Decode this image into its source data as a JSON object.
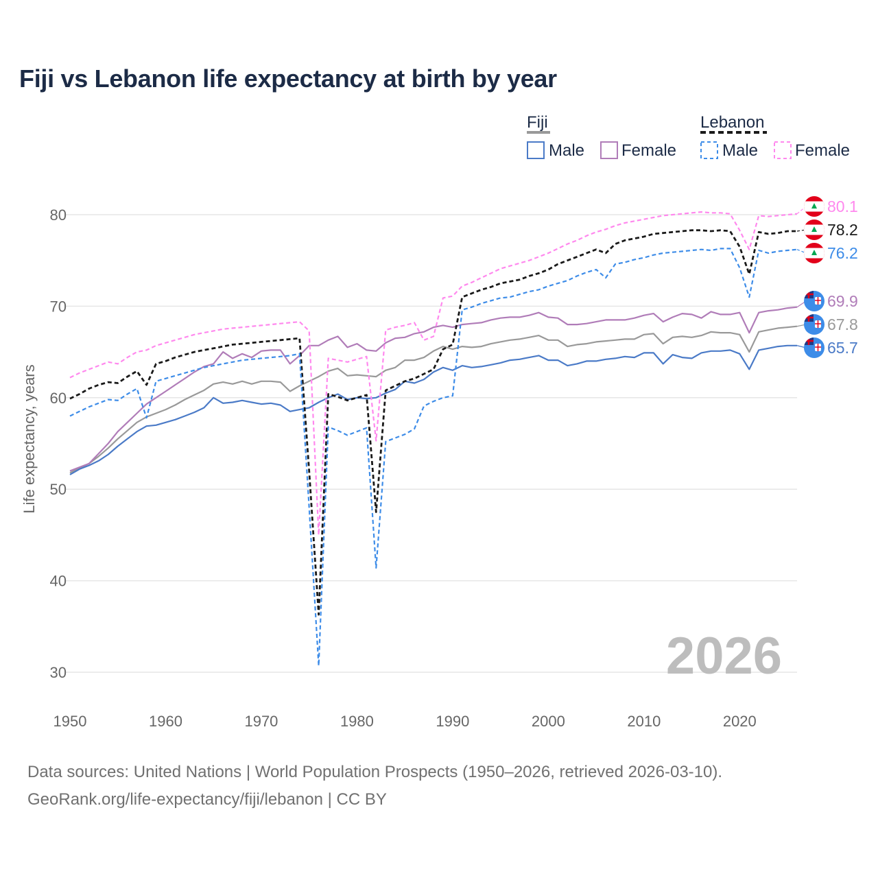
{
  "header": {
    "title": "Fiji vs Lebanon life expectancy at birth by year"
  },
  "footer": {
    "source_line": "Data sources: United Nations | World Population Prospects (1950–2026, retrieved 2026-03-10).",
    "credit_line": "GeoRank.org/life-expectancy/fiji/lebanon | CC BY"
  },
  "colors": {
    "fiji_total": "#999999",
    "fiji_male": "#4a7ac7",
    "fiji_female": "#b07cb8",
    "lebanon_total": "#1a1a1a",
    "lebanon_male": "#3d8ce8",
    "lebanon_female": "#ff88ee",
    "grid": "#e6e6e6",
    "title": "#1c2b46"
  },
  "chart_data": {
    "type": "line",
    "title": "Fiji vs Lebanon life expectancy at birth by year",
    "xlabel": "",
    "ylabel": "Life expectancy, years",
    "xlim": [
      1950,
      2026
    ],
    "ylim": [
      27,
      85
    ],
    "x_ticks": [
      1950,
      1960,
      1970,
      1980,
      1990,
      2000,
      2010,
      2020
    ],
    "y_ticks": [
      30,
      40,
      50,
      60,
      70,
      80
    ],
    "grid": true,
    "year_watermark": "2026",
    "legend": {
      "placement": "top-right",
      "groups": [
        {
          "name": "Fiji",
          "items": [
            "Male",
            "Female"
          ]
        },
        {
          "name": "Lebanon",
          "items": [
            "Male",
            "Female"
          ]
        }
      ]
    },
    "x": [
      1950,
      1951,
      1952,
      1953,
      1954,
      1955,
      1956,
      1957,
      1958,
      1959,
      1960,
      1961,
      1962,
      1963,
      1964,
      1965,
      1966,
      1967,
      1968,
      1969,
      1970,
      1971,
      1972,
      1973,
      1974,
      1975,
      1976,
      1977,
      1978,
      1979,
      1980,
      1981,
      1982,
      1983,
      1984,
      1985,
      1986,
      1987,
      1988,
      1989,
      1990,
      1991,
      1992,
      1993,
      1994,
      1995,
      1996,
      1997,
      1998,
      1999,
      2000,
      2001,
      2002,
      2003,
      2004,
      2005,
      2006,
      2007,
      2008,
      2009,
      2010,
      2011,
      2012,
      2013,
      2014,
      2015,
      2016,
      2017,
      2018,
      2019,
      2020,
      2021,
      2022,
      2023,
      2024,
      2025,
      2026
    ],
    "series": [
      {
        "name": "Fiji",
        "id": "fiji_total",
        "dash": "solid",
        "values": [
          51.8,
          52.3,
          52.8,
          53.6,
          54.5,
          55.5,
          56.4,
          57.3,
          57.9,
          58.3,
          58.7,
          59.2,
          59.8,
          60.3,
          60.8,
          61.5,
          61.7,
          61.5,
          61.8,
          61.5,
          61.8,
          61.8,
          61.7,
          60.7,
          61.3,
          61.8,
          62.3,
          62.9,
          63.2,
          62.4,
          62.5,
          62.4,
          62.3,
          63.0,
          63.3,
          64.1,
          64.1,
          64.4,
          65.1,
          65.6,
          65.3,
          65.6,
          65.5,
          65.6,
          65.9,
          66.1,
          66.3,
          66.4,
          66.6,
          66.8,
          66.3,
          66.3,
          65.6,
          65.8,
          65.9,
          66.1,
          66.2,
          66.3,
          66.4,
          66.4,
          66.9,
          67.0,
          65.9,
          66.6,
          66.7,
          66.6,
          66.8,
          67.2,
          67.1,
          67.1,
          66.9,
          65.0,
          67.2,
          67.4,
          67.6,
          67.7,
          67.8
        ]
      },
      {
        "name": "Fiji Male",
        "id": "fiji_male",
        "dash": "solid",
        "values": [
          51.6,
          52.2,
          52.6,
          53.1,
          53.8,
          54.7,
          55.5,
          56.3,
          56.9,
          57.0,
          57.3,
          57.6,
          58.0,
          58.4,
          58.9,
          60.0,
          59.4,
          59.5,
          59.7,
          59.5,
          59.3,
          59.4,
          59.2,
          58.5,
          58.7,
          58.9,
          59.5,
          60.0,
          60.4,
          59.8,
          60.0,
          59.9,
          60.0,
          60.5,
          60.9,
          61.8,
          61.6,
          62.0,
          62.8,
          63.3,
          63.0,
          63.5,
          63.3,
          63.4,
          63.6,
          63.8,
          64.1,
          64.2,
          64.4,
          64.6,
          64.1,
          64.1,
          63.5,
          63.7,
          64.0,
          64.0,
          64.2,
          64.3,
          64.5,
          64.4,
          64.9,
          64.9,
          63.7,
          64.7,
          64.4,
          64.3,
          64.9,
          65.1,
          65.1,
          65.2,
          64.8,
          63.1,
          65.2,
          65.4,
          65.6,
          65.7,
          65.7
        ]
      },
      {
        "name": "Fiji Female",
        "id": "fiji_female",
        "dash": "solid",
        "values": [
          52.0,
          52.4,
          52.8,
          53.9,
          55.0,
          56.3,
          57.3,
          58.3,
          59.3,
          60.0,
          60.7,
          61.4,
          62.1,
          62.8,
          63.4,
          63.7,
          65.0,
          64.3,
          64.8,
          64.4,
          65.1,
          65.2,
          65.2,
          63.7,
          64.6,
          65.7,
          65.7,
          66.3,
          66.7,
          65.5,
          65.9,
          65.2,
          65.1,
          66.0,
          66.5,
          66.6,
          67.0,
          67.2,
          67.7,
          67.9,
          67.7,
          68.0,
          68.1,
          68.2,
          68.5,
          68.7,
          68.8,
          68.8,
          69.0,
          69.3,
          68.8,
          68.7,
          68.0,
          68.0,
          68.1,
          68.3,
          68.5,
          68.5,
          68.5,
          68.7,
          69.0,
          69.2,
          68.3,
          68.8,
          69.2,
          69.1,
          68.7,
          69.4,
          69.1,
          69.1,
          69.3,
          67.1,
          69.3,
          69.5,
          69.6,
          69.8,
          69.9
        ]
      },
      {
        "name": "Lebanon",
        "id": "lebanon_total",
        "dash": "dashed",
        "values": [
          59.9,
          60.4,
          61.0,
          61.4,
          61.7,
          61.6,
          62.3,
          62.9,
          61.4,
          63.7,
          64.0,
          64.4,
          64.7,
          65.0,
          65.2,
          65.4,
          65.6,
          65.8,
          65.9,
          66.0,
          66.1,
          66.2,
          66.3,
          66.4,
          66.5,
          52.0,
          36.3,
          60.4,
          60.1,
          59.7,
          60.0,
          60.3,
          47.5,
          60.8,
          61.3,
          61.8,
          62.1,
          62.6,
          63.1,
          65.3,
          65.8,
          71.0,
          71.4,
          71.8,
          72.1,
          72.5,
          72.7,
          72.9,
          73.3,
          73.6,
          74.0,
          74.6,
          75.0,
          75.4,
          75.8,
          76.2,
          75.8,
          76.8,
          77.2,
          77.4,
          77.6,
          77.9,
          78.0,
          78.1,
          78.2,
          78.3,
          78.3,
          78.2,
          78.3,
          78.2,
          76.5,
          73.5,
          78.1,
          77.9,
          78.0,
          78.2,
          78.2
        ]
      },
      {
        "name": "Lebanon Male",
        "id": "lebanon_male",
        "dash": "dashed",
        "values": [
          58.0,
          58.5,
          59.0,
          59.4,
          59.8,
          59.7,
          60.4,
          61.0,
          57.8,
          61.8,
          62.1,
          62.4,
          62.7,
          63.0,
          63.3,
          63.5,
          63.7,
          63.9,
          64.1,
          64.2,
          64.3,
          64.4,
          64.5,
          64.6,
          64.8,
          48.0,
          30.7,
          56.8,
          56.4,
          55.9,
          56.3,
          56.7,
          41.4,
          55.2,
          55.6,
          56.0,
          56.6,
          59.1,
          59.6,
          60.0,
          60.2,
          69.6,
          69.9,
          70.3,
          70.6,
          70.9,
          71.0,
          71.3,
          71.6,
          71.8,
          72.2,
          72.5,
          72.8,
          73.3,
          73.7,
          74.0,
          73.1,
          74.6,
          74.8,
          75.1,
          75.3,
          75.6,
          75.8,
          75.9,
          76.0,
          76.1,
          76.2,
          76.1,
          76.3,
          76.3,
          74.2,
          71.0,
          76.1,
          75.8,
          76.0,
          76.1,
          76.2
        ]
      },
      {
        "name": "Lebanon Female",
        "id": "lebanon_female",
        "dash": "dashed",
        "values": [
          62.2,
          62.7,
          63.1,
          63.5,
          63.9,
          63.7,
          64.4,
          65.0,
          65.2,
          65.7,
          66.0,
          66.3,
          66.6,
          66.9,
          67.1,
          67.3,
          67.5,
          67.6,
          67.7,
          67.8,
          67.9,
          68.0,
          68.1,
          68.2,
          68.3,
          67.3,
          45.0,
          64.3,
          64.1,
          63.9,
          64.2,
          64.5,
          55.3,
          67.4,
          67.7,
          67.9,
          68.2,
          66.3,
          66.7,
          70.9,
          71.1,
          72.2,
          72.6,
          73.1,
          73.6,
          74.1,
          74.4,
          74.7,
          75.0,
          75.4,
          75.8,
          76.3,
          76.8,
          77.2,
          77.7,
          78.1,
          78.4,
          78.8,
          79.1,
          79.3,
          79.5,
          79.7,
          79.9,
          80.0,
          80.1,
          80.2,
          80.3,
          80.2,
          80.2,
          80.1,
          78.3,
          76.2,
          79.9,
          79.8,
          79.9,
          80.0,
          80.1
        ]
      }
    ],
    "end_labels": [
      {
        "series": "lebanon_female",
        "text": "80.1",
        "flag": "lebanon"
      },
      {
        "series": "lebanon_total",
        "text": "78.2",
        "flag": "lebanon"
      },
      {
        "series": "lebanon_male",
        "text": "76.2",
        "flag": "lebanon"
      },
      {
        "series": "fiji_female",
        "text": "69.9",
        "flag": "fiji"
      },
      {
        "series": "fiji_total",
        "text": "67.8",
        "flag": "fiji"
      },
      {
        "series": "fiji_male",
        "text": "65.7",
        "flag": "fiji"
      }
    ]
  }
}
